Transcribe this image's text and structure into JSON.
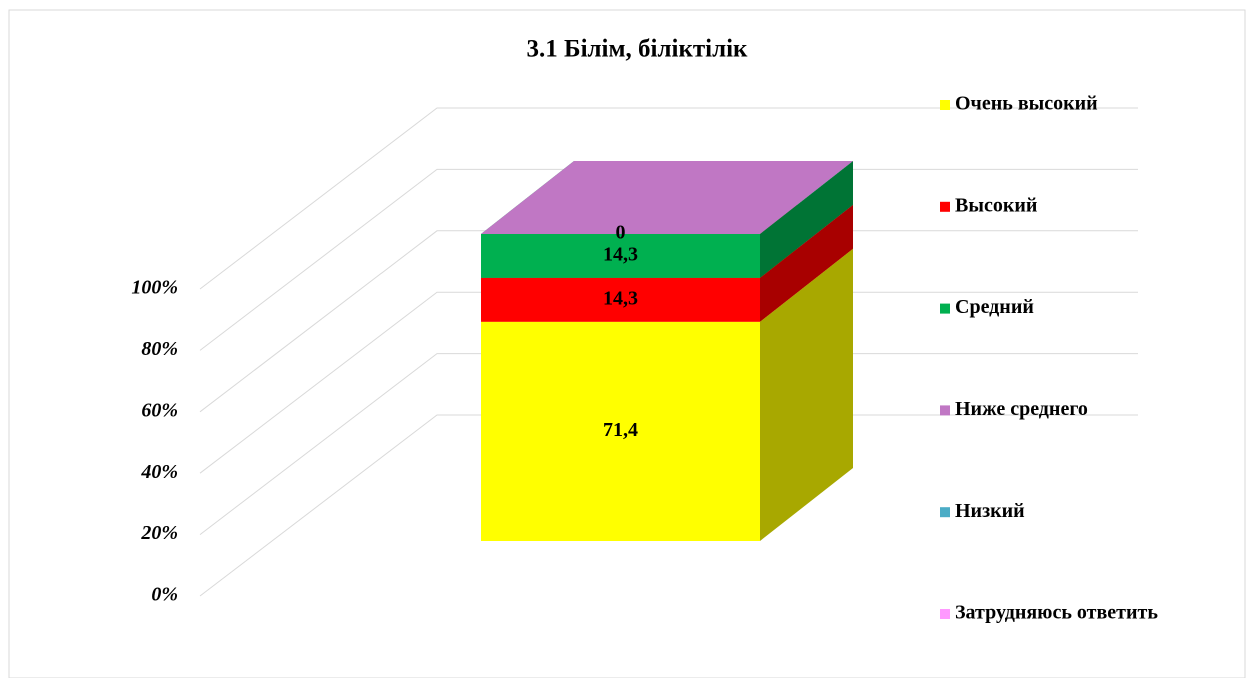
{
  "chart_data": {
    "type": "bar3d_stacked_percent",
    "title": "3.1 Білім, біліктілік",
    "categories": [
      null
    ],
    "series": [
      {
        "name": "Очень высокий",
        "color": "#ffff00",
        "values": [
          71.4
        ],
        "value_labels": [
          "71,4"
        ]
      },
      {
        "name": "Высокий",
        "color": "#ff0000",
        "values": [
          14.3
        ],
        "value_labels": [
          "14,3"
        ]
      },
      {
        "name": "Средний",
        "color": "#00b050",
        "values": [
          14.3
        ],
        "value_labels": [
          "14,3"
        ]
      },
      {
        "name": "Ниже среднего",
        "color": "#c077c4",
        "values": [
          0
        ],
        "value_labels": [
          "0"
        ]
      },
      {
        "name": "Низкий",
        "color": "#4bacc6",
        "values": [
          null
        ]
      },
      {
        "name": "Затрудняюсь ответить",
        "color": "#ff99ff",
        "values": [
          null
        ]
      }
    ],
    "ylim": [
      0,
      100
    ],
    "yticks": [
      {
        "value": 0,
        "label": "0%"
      },
      {
        "value": 20,
        "label": "20%"
      },
      {
        "value": 40,
        "label": "40%"
      },
      {
        "value": 60,
        "label": "60%"
      },
      {
        "value": 80,
        "label": "80%"
      },
      {
        "value": 100,
        "label": "100%"
      }
    ],
    "grid": true,
    "legend": "right"
  }
}
